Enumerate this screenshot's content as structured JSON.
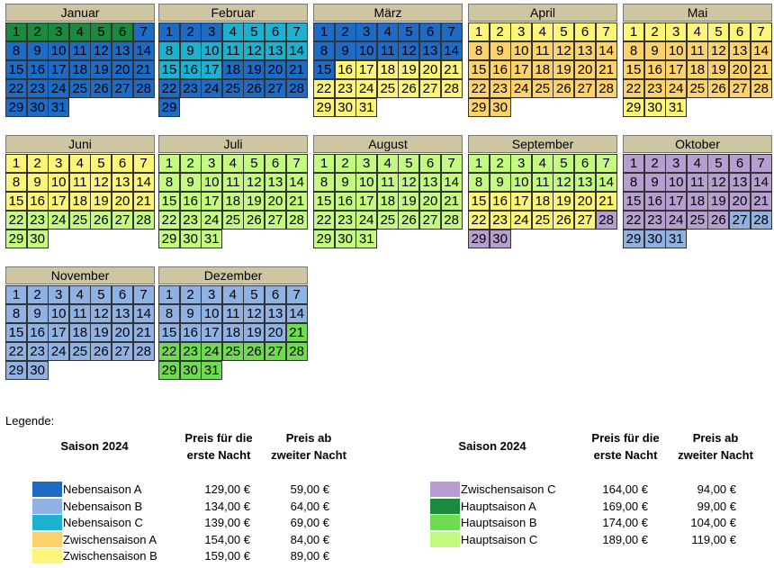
{
  "seasons": {
    "NA": {
      "name": "Nebensaison A",
      "color": "#1e6bc6",
      "price1": "129,00 €",
      "price2": "59,00 €"
    },
    "NB": {
      "name": "Nebensaison B",
      "color": "#8fb2e3",
      "price1": "134,00 €",
      "price2": "64,00 €"
    },
    "NC": {
      "name": "Nebensaison C",
      "color": "#1eb1cf",
      "price1": "139,00 €",
      "price2": "69,00 €"
    },
    "ZA": {
      "name": "Zwischensaison A",
      "color": "#fdd26c",
      "price1": "154,00 €",
      "price2": "84,00 €"
    },
    "ZB": {
      "name": "Zwischensaison B",
      "color": "#fcf57a",
      "price1": "159,00 €",
      "price2": "89,00 €"
    },
    "ZC": {
      "name": "Zwischensaison C",
      "color": "#b79ed0",
      "price1": "164,00 €",
      "price2": "94,00 €"
    },
    "HA": {
      "name": "Hauptsaison A",
      "color": "#1c8a3e",
      "price1": "169,00 €",
      "price2": "99,00 €"
    },
    "HB": {
      "name": "Hauptsaison B",
      "color": "#6edb50",
      "price1": "174,00 €",
      "price2": "104,00 €"
    },
    "HC": {
      "name": "Hauptsaison C",
      "color": "#c5fa82",
      "price1": "189,00 €",
      "price2": "119,00 €"
    }
  },
  "months": [
    {
      "name": "Januar",
      "days": 31,
      "ranges": [
        [
          1,
          6,
          "HA"
        ],
        [
          7,
          31,
          "NA"
        ]
      ]
    },
    {
      "name": "Februar",
      "days": 29,
      "ranges": [
        [
          1,
          3,
          "NA"
        ],
        [
          4,
          17,
          "NC"
        ],
        [
          18,
          29,
          "NA"
        ]
      ]
    },
    {
      "name": "März",
      "days": 31,
      "ranges": [
        [
          1,
          15,
          "NA"
        ],
        [
          16,
          31,
          "ZB"
        ]
      ]
    },
    {
      "name": "April",
      "days": 30,
      "ranges": [
        [
          1,
          7,
          "ZB"
        ],
        [
          8,
          30,
          "ZA"
        ]
      ]
    },
    {
      "name": "Mai",
      "days": 31,
      "ranges": [
        [
          1,
          7,
          "ZB"
        ],
        [
          8,
          28,
          "ZA"
        ],
        [
          29,
          31,
          "ZB"
        ]
      ]
    },
    {
      "name": "Juni",
      "days": 30,
      "ranges": [
        [
          1,
          21,
          "ZB"
        ],
        [
          22,
          30,
          "HC"
        ]
      ]
    },
    {
      "name": "Juli",
      "days": 31,
      "ranges": [
        [
          1,
          31,
          "HC"
        ]
      ]
    },
    {
      "name": "August",
      "days": 31,
      "ranges": [
        [
          1,
          31,
          "HC"
        ]
      ]
    },
    {
      "name": "September",
      "days": 30,
      "ranges": [
        [
          1,
          14,
          "HC"
        ],
        [
          15,
          27,
          "ZB"
        ],
        [
          28,
          30,
          "ZC"
        ]
      ]
    },
    {
      "name": "Oktober",
      "days": 31,
      "ranges": [
        [
          1,
          26,
          "ZC"
        ],
        [
          27,
          31,
          "NB"
        ]
      ]
    },
    {
      "name": "November",
      "days": 30,
      "ranges": [
        [
          1,
          30,
          "NB"
        ]
      ]
    },
    {
      "name": "Dezember",
      "days": 31,
      "ranges": [
        [
          1,
          20,
          "NB"
        ],
        [
          21,
          31,
          "HB"
        ]
      ]
    }
  ],
  "legend": {
    "title": "Legende:",
    "season_header": "Saison 2024",
    "price1_header_l1": "Preis für die",
    "price1_header_l2": "erste Nacht",
    "price2_header_l1": "Preis ab",
    "price2_header_l2": "zweiter Nacht",
    "left": [
      "NA",
      "NB",
      "NC",
      "ZA",
      "ZB"
    ],
    "right": [
      "ZC",
      "HA",
      "HB",
      "HC"
    ]
  }
}
